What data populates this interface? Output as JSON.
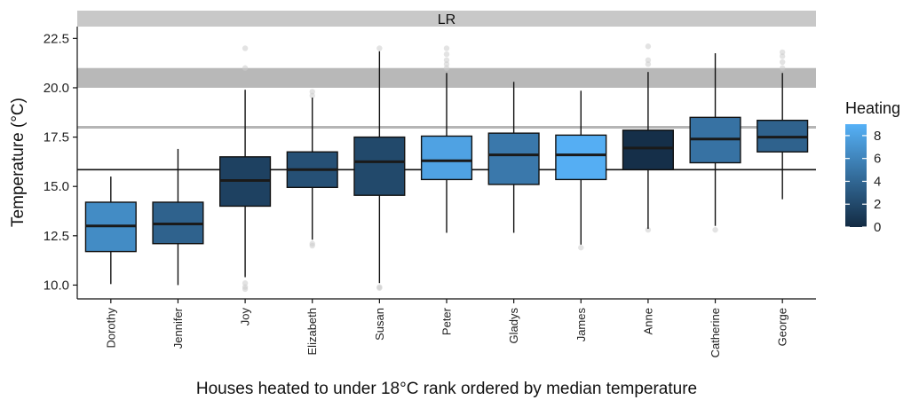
{
  "chart_data": {
    "type": "boxplot",
    "facet_label": "LR",
    "xlabel": "Houses heated to under 18°C rank ordered by median temperature",
    "ylabel": "Temperature (°C)",
    "ylim": [
      9.3,
      23.1
    ],
    "yticks": [
      10.0,
      12.5,
      15.0,
      17.5,
      20.0,
      22.5
    ],
    "ytick_labels": [
      "10.0",
      "12.5",
      "15.0",
      "17.5",
      "20.0",
      "22.5"
    ],
    "reference_band": [
      20.0,
      21.0
    ],
    "reference_line_grey": 18.0,
    "reference_line_black": 15.85,
    "legend": {
      "title": "Heating",
      "min": 0,
      "max": 9,
      "ticks": [
        0,
        2,
        4,
        6,
        8
      ],
      "tick_labels": [
        "0",
        "2",
        "4",
        "6",
        "8"
      ],
      "color_low": "#132B43",
      "color_high": "#56B1F7"
    },
    "categories": [
      "Dorothy",
      "Jennifer",
      "Joy",
      "Elizabeth",
      "Susan",
      "Peter",
      "Gladys",
      "James",
      "Anne",
      "Catherine",
      "George"
    ],
    "boxes": [
      {
        "name": "Dorothy",
        "whisker_low": 10.05,
        "q1": 11.7,
        "median": 13.0,
        "q3": 14.2,
        "whisker_high": 15.5,
        "heating": 6.5,
        "outliers": []
      },
      {
        "name": "Jennifer",
        "whisker_low": 10.0,
        "q1": 12.1,
        "median": 13.1,
        "q3": 14.2,
        "whisker_high": 16.9,
        "heating": 3.7,
        "outliers": []
      },
      {
        "name": "Joy",
        "whisker_low": 10.4,
        "q1": 14.0,
        "median": 15.3,
        "q3": 16.5,
        "whisker_high": 19.9,
        "heating": 1.5,
        "outliers": [
          22.0,
          21.0,
          10.1,
          9.9,
          9.8
        ]
      },
      {
        "name": "Elizabeth",
        "whisker_low": 12.3,
        "q1": 14.95,
        "median": 15.85,
        "q3": 16.75,
        "whisker_high": 19.5,
        "heating": 2.5,
        "outliers": [
          19.8,
          19.6,
          12.1,
          12.0
        ]
      },
      {
        "name": "Susan",
        "whisker_low": 10.1,
        "q1": 14.55,
        "median": 16.25,
        "q3": 17.5,
        "whisker_high": 21.85,
        "heating": 2.0,
        "outliers": [
          22.0,
          9.9,
          9.85
        ]
      },
      {
        "name": "Peter",
        "whisker_low": 12.65,
        "q1": 15.35,
        "median": 16.3,
        "q3": 17.55,
        "whisker_high": 20.75,
        "heating": 8.0,
        "outliers": [
          22.0,
          21.7,
          21.4,
          21.2,
          21.0
        ]
      },
      {
        "name": "Gladys",
        "whisker_low": 12.65,
        "q1": 15.1,
        "median": 16.6,
        "q3": 17.7,
        "whisker_high": 20.3,
        "heating": 5.2,
        "outliers": []
      },
      {
        "name": "James",
        "whisker_low": 12.05,
        "q1": 15.35,
        "median": 16.6,
        "q3": 17.6,
        "whisker_high": 19.85,
        "heating": 8.8,
        "outliers": [
          11.9
        ]
      },
      {
        "name": "Anne",
        "whisker_low": 12.85,
        "q1": 15.85,
        "median": 16.95,
        "q3": 17.85,
        "whisker_high": 20.8,
        "heating": 0.3,
        "outliers": [
          22.1,
          21.4,
          21.2,
          12.8
        ]
      },
      {
        "name": "Catherine",
        "whisker_low": 13.0,
        "q1": 16.2,
        "median": 17.4,
        "q3": 18.5,
        "whisker_high": 21.75,
        "heating": 4.8,
        "outliers": [
          12.8
        ]
      },
      {
        "name": "George",
        "whisker_low": 14.35,
        "q1": 16.75,
        "median": 17.5,
        "q3": 18.35,
        "whisker_high": 20.75,
        "heating": 3.7,
        "outliers": [
          21.8,
          21.6,
          21.3,
          21.0
        ]
      }
    ]
  }
}
